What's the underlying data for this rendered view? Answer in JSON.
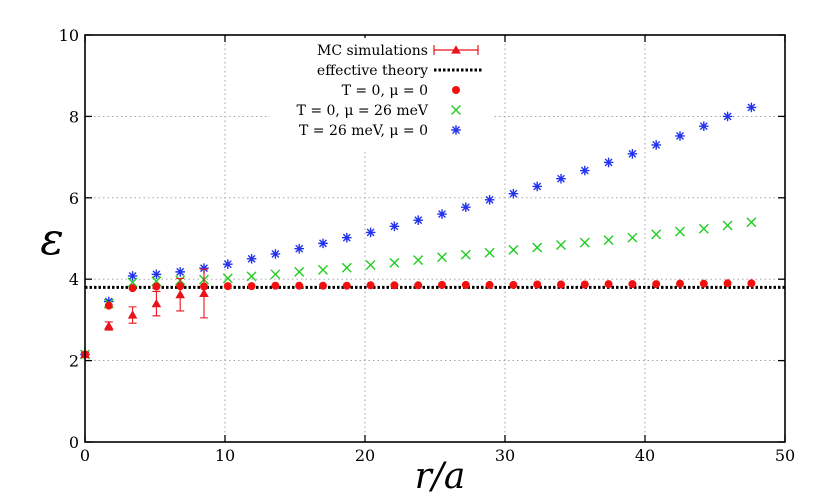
{
  "chart_data": {
    "type": "scatter",
    "title": "",
    "xlabel": "r/a",
    "ylabel": "ε",
    "xlim": [
      0,
      50
    ],
    "ylim": [
      0,
      10
    ],
    "grid": true,
    "legend_position": "top-center",
    "x_ticks": [
      {
        "value": 0,
        "label": "0"
      },
      {
        "value": 10,
        "label": "10"
      },
      {
        "value": 20,
        "label": "20"
      },
      {
        "value": 30,
        "label": "30"
      },
      {
        "value": 40,
        "label": "40"
      },
      {
        "value": 50,
        "label": "50"
      }
    ],
    "y_ticks": [
      {
        "value": 0,
        "label": "0"
      },
      {
        "value": 2,
        "label": "2"
      },
      {
        "value": 4,
        "label": "4"
      },
      {
        "value": 6,
        "label": "6"
      },
      {
        "value": 8,
        "label": "8"
      },
      {
        "value": 10,
        "label": "10"
      }
    ],
    "series": [
      {
        "id": "mc",
        "name": "MC simulations",
        "legend_label": "MC simulations",
        "marker": "triangle-errorbar",
        "color": "#e8141c",
        "x": [
          0,
          1.7,
          3.4,
          5.1,
          6.8,
          8.5
        ],
        "y": [
          2.15,
          2.85,
          3.12,
          3.4,
          3.62,
          3.65
        ],
        "err": [
          0.05,
          0.1,
          0.2,
          0.3,
          0.4,
          0.6
        ]
      },
      {
        "id": "eff",
        "name": "effective theory",
        "legend_label": "effective theory",
        "marker": "dotted-line",
        "color": "#000000",
        "value": 3.8
      },
      {
        "id": "t0mu0",
        "name": "T=0, mu=0",
        "legend_label": "T = 0, μ = 0",
        "marker": "circle",
        "color": "#f01010",
        "x": [
          0,
          1.7,
          3.4,
          5.1,
          6.8,
          8.5,
          10.2,
          11.9,
          13.6,
          15.3,
          17.0,
          18.7,
          20.4,
          22.1,
          23.8,
          25.5,
          27.2,
          28.9,
          30.6,
          32.3,
          34.0,
          35.7,
          37.4,
          39.1,
          40.8,
          42.5,
          44.2,
          45.9,
          47.6
        ],
        "y": [
          2.15,
          3.35,
          3.78,
          3.82,
          3.83,
          3.82,
          3.83,
          3.83,
          3.84,
          3.84,
          3.84,
          3.84,
          3.85,
          3.85,
          3.85,
          3.86,
          3.86,
          3.86,
          3.86,
          3.87,
          3.87,
          3.87,
          3.88,
          3.88,
          3.88,
          3.89,
          3.89,
          3.9,
          3.9
        ]
      },
      {
        "id": "t0mu26",
        "name": "T=0, mu=26 meV",
        "legend_label": "T = 0, μ = 26 meV",
        "marker": "cross",
        "color": "#22cc22",
        "x": [
          0,
          1.7,
          3.4,
          5.1,
          6.8,
          8.5,
          10.2,
          11.9,
          13.6,
          15.3,
          17.0,
          18.7,
          20.4,
          22.1,
          23.8,
          25.5,
          27.2,
          28.9,
          30.6,
          32.3,
          34.0,
          35.7,
          37.4,
          39.1,
          40.8,
          42.5,
          44.2,
          45.9,
          47.6
        ],
        "y": [
          2.15,
          3.4,
          3.92,
          3.95,
          3.97,
          3.99,
          4.02,
          4.07,
          4.12,
          4.18,
          4.23,
          4.28,
          4.35,
          4.4,
          4.47,
          4.54,
          4.6,
          4.65,
          4.72,
          4.78,
          4.84,
          4.9,
          4.96,
          5.02,
          5.1,
          5.17,
          5.24,
          5.32,
          5.4
        ]
      },
      {
        "id": "t26mu0",
        "name": "T=26 meV, mu=0",
        "legend_label": "T = 26 meV, μ = 0",
        "marker": "asterisk",
        "color": "#2233ee",
        "x": [
          0,
          1.7,
          3.4,
          5.1,
          6.8,
          8.5,
          10.2,
          11.9,
          13.6,
          15.3,
          17.0,
          18.7,
          20.4,
          22.1,
          23.8,
          25.5,
          27.2,
          28.9,
          30.6,
          32.3,
          34.0,
          35.7,
          37.4,
          39.1,
          40.8,
          42.5,
          44.2,
          45.9,
          47.6
        ],
        "y": [
          2.15,
          3.45,
          4.08,
          4.12,
          4.18,
          4.27,
          4.37,
          4.5,
          4.62,
          4.75,
          4.88,
          5.02,
          5.15,
          5.3,
          5.45,
          5.6,
          5.77,
          5.95,
          6.1,
          6.28,
          6.47,
          6.67,
          6.87,
          7.08,
          7.3,
          7.52,
          7.76,
          8.0,
          8.22
        ]
      }
    ]
  }
}
